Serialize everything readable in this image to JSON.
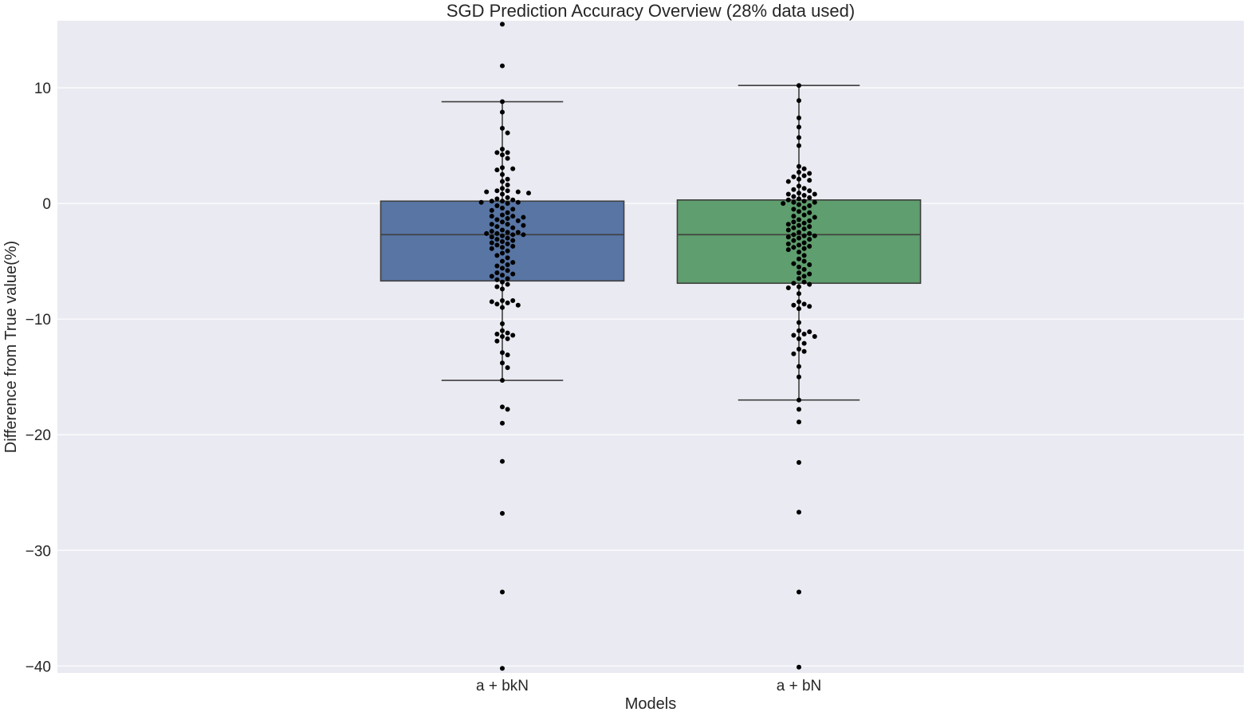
{
  "chart_data": {
    "type": "box",
    "title": "SGD Prediction Accuracy Overview (28% data used)",
    "xlabel": "Models",
    "ylabel": "Difference from True value(%)",
    "ylim": [
      -40.6,
      15.8
    ],
    "yticks": [
      10,
      0,
      -10,
      -20,
      -30,
      -40
    ],
    "ytick_labels": [
      "10",
      "0",
      "−10",
      "−20",
      "−30",
      "−40"
    ],
    "grid": true,
    "categories": [
      "a + bkN",
      "a + bN"
    ],
    "colors": [
      "#5875a4",
      "#5f9e6e"
    ],
    "background": "#eaeaf2",
    "boxes": [
      {
        "name": "a + bkN",
        "q1": -6.7,
        "median": -2.7,
        "q3": 0.2,
        "whisker_low": -15.3,
        "whisker_high": 8.8
      },
      {
        "name": "a + bN",
        "q1": -6.9,
        "median": -2.7,
        "q3": 0.3,
        "whisker_low": -17.0,
        "whisker_high": 10.2
      }
    ],
    "points": [
      [
        15.5,
        11.9,
        8.8,
        7.9,
        6.5,
        6.1,
        4.7,
        4.4,
        4.4,
        4.2,
        3.9,
        3.1,
        3.0,
        2.9,
        2.5,
        2.1,
        1.9,
        1.6,
        1.3,
        1.1,
        1.1,
        1.0,
        1.0,
        0.9,
        0.8,
        0.5,
        0.4,
        0.3,
        0.2,
        0.2,
        0.1,
        0.1,
        0.0,
        -0.2,
        -0.4,
        -0.5,
        -0.6,
        -0.8,
        -1.0,
        -1.1,
        -1.1,
        -1.2,
        -1.3,
        -1.4,
        -1.5,
        -1.6,
        -1.8,
        -1.8,
        -1.9,
        -2.0,
        -2.1,
        -2.3,
        -2.4,
        -2.5,
        -2.5,
        -2.6,
        -2.6,
        -2.7,
        -2.7,
        -2.8,
        -2.9,
        -3.0,
        -3.1,
        -3.2,
        -3.3,
        -3.4,
        -3.5,
        -3.6,
        -3.7,
        -3.8,
        -3.9,
        -4.1,
        -4.3,
        -4.5,
        -4.7,
        -5.0,
        -5.1,
        -5.3,
        -5.4,
        -5.6,
        -5.8,
        -6.0,
        -6.1,
        -6.2,
        -6.3,
        -6.5,
        -6.6,
        -6.8,
        -7.0,
        -7.2,
        -7.4,
        -8.4,
        -8.4,
        -8.5,
        -8.6,
        -8.7,
        -8.8,
        -9.0,
        -10.4,
        -11.0,
        -11.2,
        -11.3,
        -11.4,
        -11.5,
        -11.7,
        -11.9,
        -12.9,
        -13.1,
        -13.8,
        -14.2,
        -15.3,
        -17.6,
        -17.8,
        -19.0,
        -22.3,
        -26.8,
        -33.6,
        -40.2
      ],
      [
        10.2,
        8.9,
        7.4,
        6.6,
        5.7,
        5.0,
        3.2,
        3.0,
        2.7,
        2.6,
        2.4,
        2.3,
        2.1,
        2.0,
        1.9,
        1.5,
        1.3,
        1.2,
        1.1,
        0.9,
        0.8,
        0.8,
        0.7,
        0.6,
        0.5,
        0.4,
        0.3,
        0.2,
        0.1,
        0.1,
        0.0,
        -0.1,
        -0.2,
        -0.4,
        -0.5,
        -0.7,
        -0.8,
        -1.0,
        -1.1,
        -1.2,
        -1.4,
        -1.5,
        -1.6,
        -1.7,
        -1.8,
        -1.9,
        -2.0,
        -2.1,
        -2.2,
        -2.3,
        -2.5,
        -2.6,
        -2.7,
        -2.8,
        -2.8,
        -2.9,
        -3.0,
        -3.1,
        -3.2,
        -3.4,
        -3.5,
        -3.6,
        -3.7,
        -3.8,
        -3.9,
        -4.0,
        -4.2,
        -4.5,
        -4.8,
        -5.0,
        -5.2,
        -5.3,
        -5.5,
        -5.7,
        -6.0,
        -6.1,
        -6.3,
        -6.5,
        -6.8,
        -6.9,
        -7.0,
        -7.2,
        -7.3,
        -7.8,
        -8.5,
        -8.7,
        -8.8,
        -8.9,
        -9.1,
        -10.3,
        -11.0,
        -11.1,
        -11.3,
        -11.4,
        -11.5,
        -11.7,
        -12.1,
        -12.6,
        -12.8,
        -13.0,
        -14.1,
        -15.0,
        -17.0,
        -17.8,
        -18.9,
        -22.4,
        -26.7,
        -33.6,
        -40.1
      ]
    ]
  }
}
